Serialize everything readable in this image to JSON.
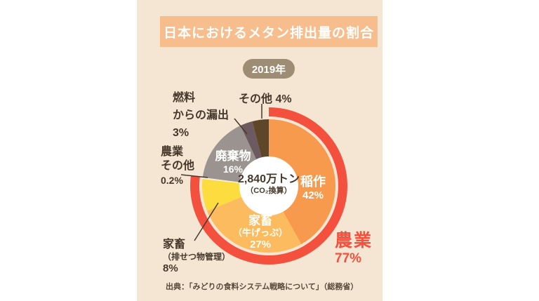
{
  "header": {
    "title": "日本におけるメタン排出量の割合",
    "year_badge": "2019年"
  },
  "colors": {
    "page_bg": "#ffffff",
    "panel_bg": "#f4e6d2",
    "title_band_bg": "#f7bd8c",
    "badge_bg": "#9d8d74",
    "accent_red": "#f3503d",
    "text_dark": "#46392b",
    "text_white": "#ffffff"
  },
  "chart_data": {
    "type": "pie",
    "subtype": "donut",
    "title": "日本におけるメタン排出量の割合",
    "year": "2019年",
    "unit": "%",
    "start_angle": "12時の位置から時計回り",
    "center_label": {
      "total": "2,840万トン",
      "note": "（CO₂換算）"
    },
    "slices": [
      {
        "label": "稲作",
        "pct_text": "42%",
        "value": 42,
        "color": "#f89a4d",
        "group": "農業"
      },
      {
        "label": "家畜（牛げっぷ）",
        "pct_text": "27%",
        "value": 27,
        "color": "#fbbb5e",
        "group": "農業"
      },
      {
        "label": "家畜（排せつ物管理）",
        "pct_text": "8%",
        "value": 8,
        "color": "#fcdc3f",
        "group": "農業"
      },
      {
        "label": "農業その他",
        "pct_text": "0.2%",
        "value": 0.2,
        "color": "#f6eddd",
        "group": "農業"
      },
      {
        "label": "廃棄物",
        "pct_text": "16%",
        "value": 16,
        "color": "#9a938f"
      },
      {
        "label": "燃料からの漏出",
        "pct_text": "3%",
        "value": 3,
        "color": "#6d5a61"
      },
      {
        "label": "その他",
        "pct_text": "4%",
        "value": 4,
        "color": "#5e4729"
      }
    ],
    "group_ring": {
      "label": "農業",
      "pct_text": "77%",
      "value": 77.2,
      "color": "#f3503d"
    }
  },
  "callouts": {
    "sonota": {
      "text": "その他 4%"
    },
    "nenryo": {
      "line1": "燃料",
      "line2": "からの漏出",
      "pct": "3%"
    },
    "nogyo_sonota": {
      "line1": "農業",
      "line2": "その他",
      "pct": "0.2%"
    },
    "haisetsu": {
      "line1": "家畜",
      "line2": "（排せつ物管理）",
      "pct": "8%"
    },
    "haikibutsu": {
      "line1": "廃棄物",
      "pct": "16%"
    },
    "inasaku": {
      "line1": "稲作",
      "pct": "42%"
    },
    "geppu": {
      "line1": "家畜",
      "line2": "（牛げっぷ）",
      "pct": "27%"
    },
    "nogyo_group": {
      "line1": "農業",
      "pct": "77%"
    }
  },
  "footer": {
    "source": "出典：「みどりの食料システム戦略について」（総務省）"
  }
}
